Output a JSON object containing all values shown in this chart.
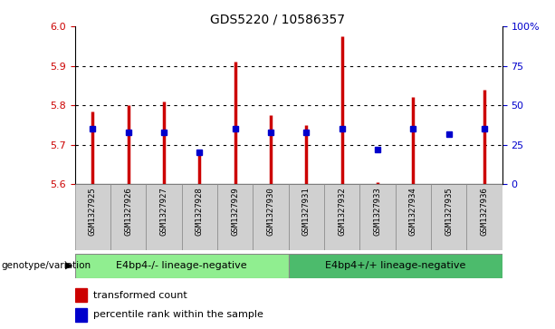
{
  "title": "GDS5220 / 10586357",
  "samples": [
    "GSM1327925",
    "GSM1327926",
    "GSM1327927",
    "GSM1327928",
    "GSM1327929",
    "GSM1327930",
    "GSM1327931",
    "GSM1327932",
    "GSM1327933",
    "GSM1327934",
    "GSM1327935",
    "GSM1327936"
  ],
  "transformed_counts": [
    5.785,
    5.8,
    5.81,
    5.675,
    5.91,
    5.775,
    5.75,
    5.975,
    5.605,
    5.82,
    5.6,
    5.84
  ],
  "percentile_ranks": [
    35,
    33,
    33,
    20,
    35,
    33,
    33,
    35,
    22,
    35,
    32,
    35
  ],
  "ymin": 5.6,
  "ymax": 6.0,
  "yticks_left": [
    5.6,
    5.7,
    5.8,
    5.9,
    6.0
  ],
  "yticks_right": [
    0,
    25,
    50,
    75,
    100
  ],
  "ytick_labels_right": [
    "0",
    "25",
    "50",
    "75",
    "100%"
  ],
  "bar_color": "#cc0000",
  "dot_color": "#0000cc",
  "group1_label": "E4bp4-/- lineage-negative",
  "group2_label": "E4bp4+/+ lineage-negative",
  "group1_color": "#90ee90",
  "group2_color": "#4cbb6c",
  "group1_indices": [
    0,
    1,
    2,
    3,
    4,
    5
  ],
  "group2_indices": [
    6,
    7,
    8,
    9,
    10,
    11
  ],
  "legend_red_label": "transformed count",
  "legend_blue_label": "percentile rank within the sample",
  "genotype_label": "genotype/variation",
  "tick_color_left": "#cc0000",
  "tick_color_right": "#0000cc"
}
